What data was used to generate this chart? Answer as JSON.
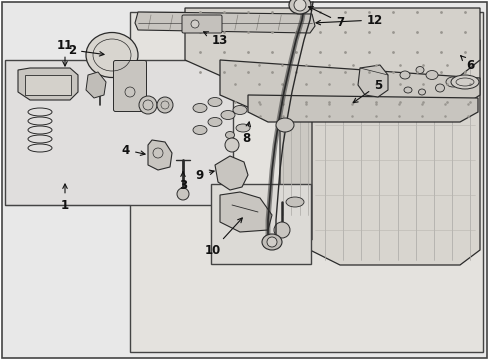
{
  "bg_color": "#e8e8e8",
  "outer_bg": "#ffffff",
  "figsize": [
    4.89,
    3.6
  ],
  "dpi": 100,
  "lc": "#2a2a2a",
  "fc": "#e0ddd8",
  "fc2": "#d0cdc8",
  "fc3": "#c8c5c0"
}
